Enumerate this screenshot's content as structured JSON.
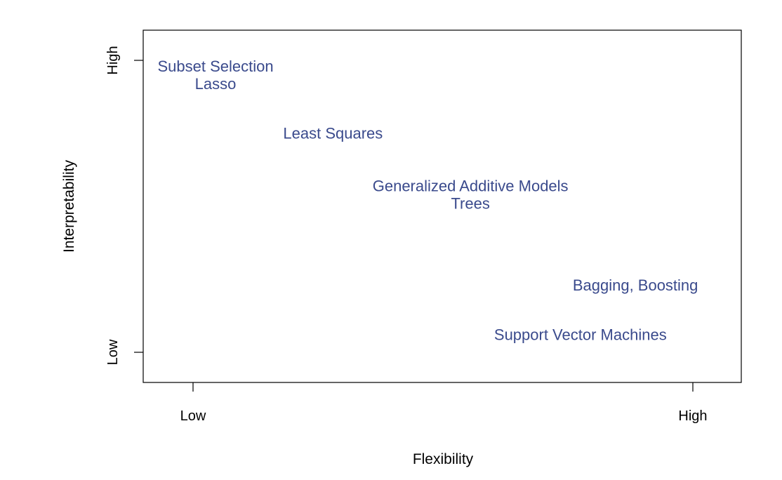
{
  "chart_data": {
    "type": "scatter",
    "title": "",
    "xlabel": "Flexibility",
    "ylabel": "Interpretability",
    "xlim": [
      0,
      1
    ],
    "ylim": [
      0,
      1
    ],
    "x_ticks": [
      {
        "value": 0,
        "label": "Low"
      },
      {
        "value": 1,
        "label": "High"
      }
    ],
    "y_ticks": [
      {
        "value": 0,
        "label": "Low"
      },
      {
        "value": 1,
        "label": "High"
      }
    ],
    "grid": false,
    "label_color": "#3a4a8c",
    "points": [
      {
        "label": "Subset Selection",
        "x": 0.045,
        "y": 0.98
      },
      {
        "label": "Lasso",
        "x": 0.045,
        "y": 0.92
      },
      {
        "label": "Least Squares",
        "x": 0.28,
        "y": 0.75
      },
      {
        "label": "Generalized Additive Models",
        "x": 0.555,
        "y": 0.57
      },
      {
        "label": "Trees",
        "x": 0.555,
        "y": 0.51
      },
      {
        "label": "Bagging, Boosting",
        "x": 0.885,
        "y": 0.23
      },
      {
        "label": "Support Vector Machines",
        "x": 0.775,
        "y": 0.06
      }
    ]
  }
}
